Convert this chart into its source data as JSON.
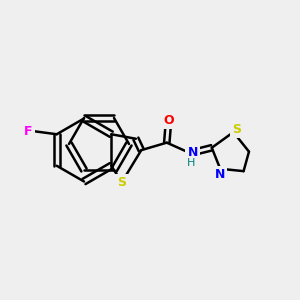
{
  "background_color": "#efefef",
  "bond_color": "#000000",
  "atom_colors": {
    "F": "#ff00ff",
    "S": "#cccc00",
    "O": "#ff0000",
    "N": "#0000ff",
    "H": "#008080"
  },
  "figsize": [
    3.0,
    3.0
  ],
  "dpi": 100
}
